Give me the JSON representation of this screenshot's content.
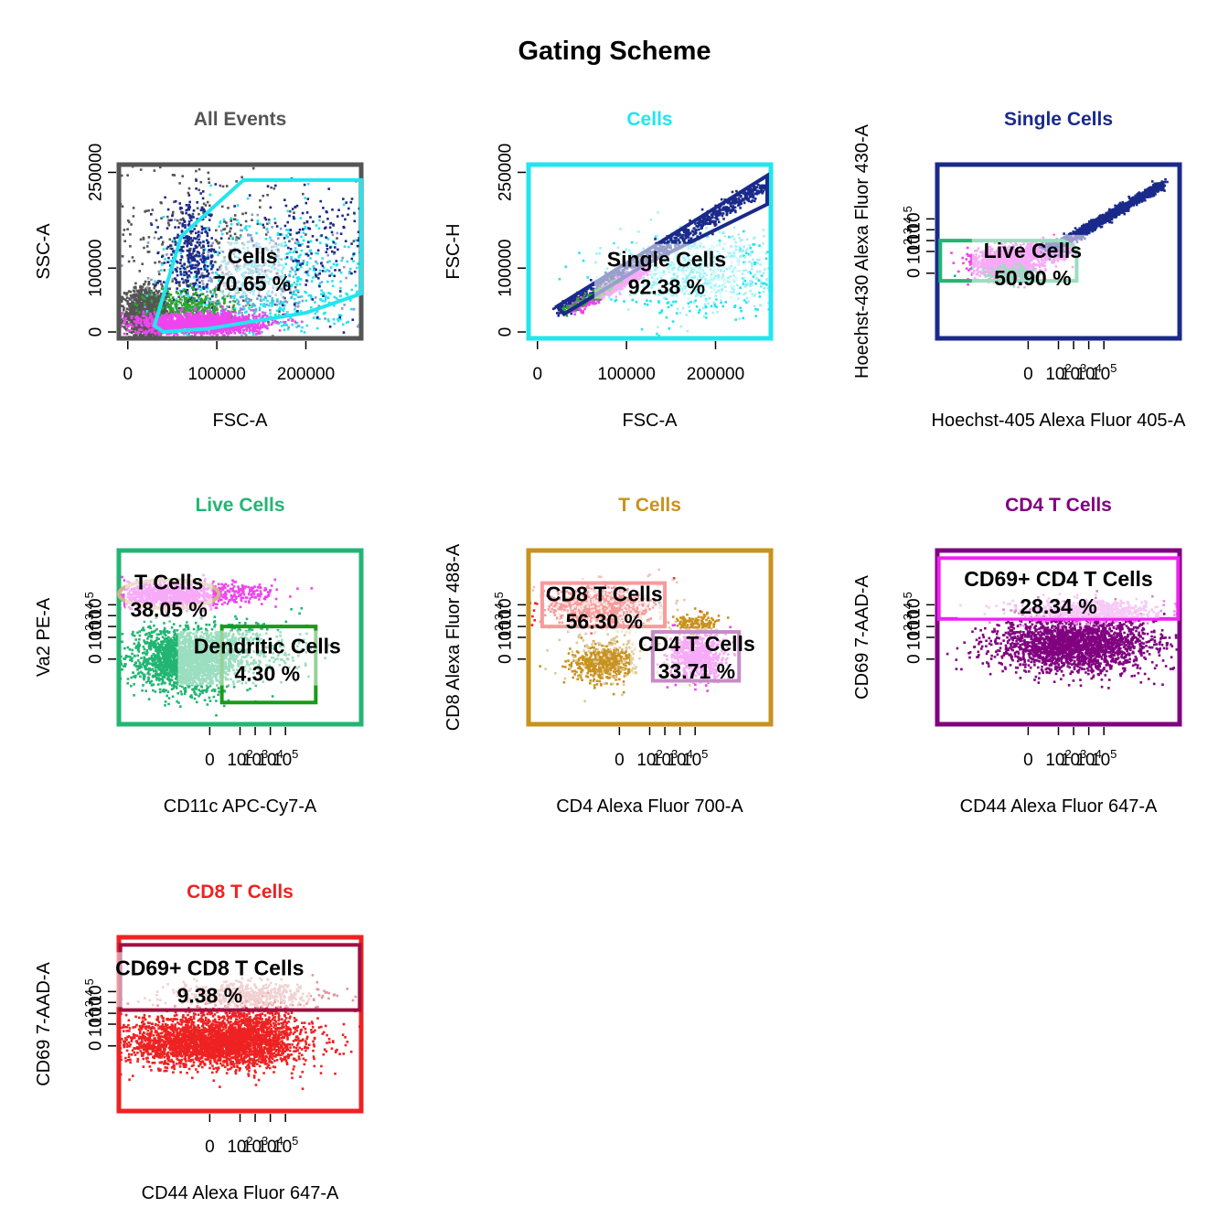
{
  "title": "Gating Scheme",
  "chart_data": [
    {
      "type": "scatter",
      "title": "All Events",
      "title_color": "#555555",
      "frame_color": "#555555",
      "xlabel": "FSC-A",
      "ylabel": "SSC-A",
      "scale": "linear",
      "xlim": [
        -10000,
        262144
      ],
      "ylim": [
        -10000,
        262144
      ],
      "xticks": [
        {
          "v": 0,
          "t": "0"
        },
        {
          "v": 100000,
          "t": "100000"
        },
        {
          "v": 200000,
          "t": "200000"
        }
      ],
      "yticks": [
        {
          "v": 0,
          "t": "0"
        },
        {
          "v": 100000,
          "t": "100000"
        },
        {
          "v": 250000,
          "t": "250000"
        }
      ],
      "gates": [
        {
          "name": "Cells",
          "percent": "70.65 %",
          "color": "#22e5ee",
          "shape": "polygon",
          "points": [
            [
              40000,
              0
            ],
            [
              90000,
              5000
            ],
            [
              200000,
              30000
            ],
            [
              262144,
              60000
            ],
            [
              262144,
              238000
            ],
            [
              130000,
              238000
            ],
            [
              60000,
              150000
            ],
            [
              30000,
              10000
            ]
          ],
          "label_at": [
            140000,
            100000
          ]
        }
      ],
      "clusters": [
        {
          "color": "#555555",
          "n": 1400,
          "cx": 20000,
          "cy": 30000,
          "sx": 12000,
          "sy": 20000
        },
        {
          "color": "#555555",
          "n": 300,
          "cx": 80000,
          "cy": 150000,
          "sx": 60000,
          "sy": 70000
        },
        {
          "color": "#22e5ee",
          "n": 700,
          "cx": 160000,
          "cy": 80000,
          "sx": 60000,
          "sy": 55000
        },
        {
          "color": "#8899cc",
          "n": 400,
          "cx": 130000,
          "cy": 70000,
          "sx": 50000,
          "sy": 45000
        },
        {
          "color": "#1a2a8a",
          "n": 350,
          "cx": 70000,
          "cy": 120000,
          "sx": 15000,
          "sy": 40000
        },
        {
          "color": "#1a2a8a",
          "n": 200,
          "cx": 210000,
          "cy": 140000,
          "sx": 40000,
          "sy": 50000
        },
        {
          "color": "#2ea32e",
          "n": 300,
          "cx": 70000,
          "cy": 40000,
          "sx": 25000,
          "sy": 15000
        },
        {
          "color": "#ee44ee",
          "n": 1600,
          "cx": 80000,
          "cy": 15000,
          "sx": 35000,
          "sy": 8000
        }
      ]
    },
    {
      "type": "scatter",
      "title": "Cells",
      "title_color": "#22e5ee",
      "frame_color": "#22e5ee",
      "xlabel": "FSC-A",
      "ylabel": "FSC-H",
      "scale": "linear",
      "xlim": [
        -10000,
        262144
      ],
      "ylim": [
        -10000,
        262144
      ],
      "xticks": [
        {
          "v": 0,
          "t": "0"
        },
        {
          "v": 100000,
          "t": "100000"
        },
        {
          "v": 200000,
          "t": "200000"
        }
      ],
      "yticks": [
        {
          "v": 0,
          "t": "0"
        },
        {
          "v": 100000,
          "t": "100000"
        },
        {
          "v": 250000,
          "t": "250000"
        }
      ],
      "gates": [
        {
          "name": "Single Cells",
          "percent": "92.38 %",
          "color": "#1a2a8a",
          "shape": "polygon",
          "points": [
            [
              22000,
              40000
            ],
            [
              258000,
              245000
            ],
            [
              258000,
              200000
            ],
            [
              120000,
              105000
            ],
            [
              30000,
              28000
            ]
          ],
          "label_at": [
            145000,
            95000
          ]
        }
      ],
      "clusters": [
        {
          "color": "#22e5ee",
          "n": 500,
          "cx": 170000,
          "cy": 90000,
          "sx": 50000,
          "sy": 30000
        },
        {
          "color": "#a8f0f5",
          "n": 400,
          "cx": 200000,
          "cy": 100000,
          "sx": 45000,
          "sy": 35000
        },
        {
          "color": "#1a2a8a",
          "line": [
            [
              25000,
              35000
            ],
            [
              255000,
              232000
            ]
          ],
          "n": 900,
          "spread": 5000
        },
        {
          "color": "#ee44ee",
          "line": [
            [
              40000,
              38000
            ],
            [
              120000,
              100000
            ]
          ],
          "n": 600,
          "spread": 4000
        },
        {
          "color": "#2ea32e",
          "line": [
            [
              30000,
              35000
            ],
            [
              90000,
              80000
            ]
          ],
          "n": 120,
          "spread": 3000
        }
      ]
    },
    {
      "type": "scatter",
      "title": "Single Cells",
      "title_color": "#1a2a8a",
      "frame_color": "#1a2a8a",
      "xlabel": "Hoechst-405 Alexa Fluor 405-A",
      "ylabel": "Hoechst-430 Alexa Fluor 430-A",
      "scale": "biex",
      "xlim": [
        -6,
        10
      ],
      "ylim": [
        -6,
        10
      ],
      "xticks": [
        {
          "v": 0,
          "t": "0"
        },
        {
          "v": 2,
          "t": "10^2"
        },
        {
          "v": 3,
          "t": "10^3"
        },
        {
          "v": 4,
          "t": "10^4"
        },
        {
          "v": 5,
          "t": "10^5"
        }
      ],
      "yticks": [
        {
          "v": 0,
          "t": "0"
        },
        {
          "v": 2,
          "t": "10^2"
        },
        {
          "v": 3,
          "t": "10^3"
        },
        {
          "v": 4,
          "t": "10^4"
        },
        {
          "v": 5,
          "t": "10^5"
        }
      ],
      "gates": [
        {
          "name": "Live Cells",
          "percent": "50.90 %",
          "color": "#22b573",
          "shape": "polygon",
          "points": [
            [
              -5.8,
              3.0
            ],
            [
              2.3,
              3.0
            ],
            [
              3.2,
              2.3
            ],
            [
              3.2,
              -0.7
            ],
            [
              -5.8,
              -0.7
            ]
          ],
          "label_at": [
            0.3,
            1.0
          ]
        }
      ],
      "clusters": [
        {
          "color": "#1a2a8a",
          "line": [
            [
              1.5,
              2.3
            ],
            [
              8.8,
              8.3
            ]
          ],
          "n": 1800,
          "spread": 0.18
        },
        {
          "color": "#ee44ee",
          "n": 1500,
          "cx": -1.5,
          "cy": 1.0,
          "sx": 1.0,
          "sy": 0.7
        },
        {
          "color": "#ee44ee",
          "n": 300,
          "cx": 1.0,
          "cy": 2.0,
          "sx": 0.9,
          "sy": 0.5
        },
        {
          "color": "#22b573",
          "n": 150,
          "cx": -1.2,
          "cy": 0.0,
          "sx": 1.0,
          "sy": 0.4
        },
        {
          "color": "#1a2a8a",
          "n": 80,
          "cx": 1.5,
          "cy": 2.4,
          "sx": 0.4,
          "sy": 0.3
        }
      ]
    },
    {
      "type": "scatter",
      "title": "Live Cells",
      "title_color": "#22b573",
      "frame_color": "#22b573",
      "xlabel": "CD11c APC-Cy7-A",
      "ylabel": "Va2 PE-A",
      "scale": "biex",
      "xlim": [
        -6,
        10
      ],
      "ylim": [
        -6,
        10
      ],
      "xticks": [
        {
          "v": 0,
          "t": "0"
        },
        {
          "v": 2,
          "t": "10^2"
        },
        {
          "v": 3,
          "t": "10^3"
        },
        {
          "v": 4,
          "t": "10^4"
        },
        {
          "v": 5,
          "t": "10^5"
        }
      ],
      "yticks": [
        {
          "v": 0,
          "t": "0"
        },
        {
          "v": 2,
          "t": "10^2"
        },
        {
          "v": 3,
          "t": "10^3"
        },
        {
          "v": 4,
          "t": "10^4"
        },
        {
          "v": 5,
          "t": "10^5"
        }
      ],
      "gates": [
        {
          "name": "T Cells",
          "percent": "38.05 %",
          "color": "#d2b48c",
          "shape": "ellipse",
          "cx": -2.7,
          "cy": 6.0,
          "rx": 3.3,
          "ry": 1.3,
          "label_at": [
            -2.7,
            6.0
          ]
        },
        {
          "name": "Dendritic Cells",
          "percent": "4.30 %",
          "color": "#1a9a1a",
          "shape": "rect",
          "x0": 0.8,
          "x1": 7.0,
          "y0": -4.0,
          "y1": 3.0,
          "label_at": [
            3.8,
            0.1
          ]
        }
      ],
      "clusters": [
        {
          "color": "#22b573",
          "n": 2200,
          "cx": -1.5,
          "cy": 0.0,
          "sx": 1.8,
          "sy": 1.4
        },
        {
          "color": "#22b573",
          "n": 200,
          "cx": 1.5,
          "cy": 2.0,
          "sx": 1.2,
          "sy": 0.8
        },
        {
          "color": "#ee44ee",
          "n": 900,
          "cx": -2.5,
          "cy": 6.0,
          "sx": 2.0,
          "sy": 0.6
        },
        {
          "color": "#ee44ee",
          "n": 150,
          "cx": 1.5,
          "cy": 6.2,
          "sx": 1.5,
          "sy": 0.5
        },
        {
          "color": "#22b573",
          "n": 120,
          "cx": 4.0,
          "cy": 1.0,
          "sx": 1.5,
          "sy": 1.5
        }
      ]
    },
    {
      "type": "scatter",
      "title": "T Cells",
      "title_color": "#c8921e",
      "frame_color": "#c8921e",
      "xlabel": "CD4 Alexa Fluor 700-A",
      "ylabel": "CD8 Alexa Fluor 488-A",
      "scale": "biex",
      "xlim": [
        -6,
        10
      ],
      "ylim": [
        -6,
        10
      ],
      "xticks": [
        {
          "v": 0,
          "t": "0"
        },
        {
          "v": 2,
          "t": "10^2"
        },
        {
          "v": 3,
          "t": "10^3"
        },
        {
          "v": 4,
          "t": "10^4"
        },
        {
          "v": 5,
          "t": "10^5"
        }
      ],
      "yticks": [
        {
          "v": 0,
          "t": "0"
        },
        {
          "v": 2,
          "t": "10^2"
        },
        {
          "v": 3,
          "t": "10^3"
        },
        {
          "v": 4,
          "t": "10^4"
        },
        {
          "v": 5,
          "t": "10^5"
        }
      ],
      "gates": [
        {
          "name": "CD8 T Cells",
          "percent": "56.30 %",
          "color": "#ee2222",
          "shape": "rect",
          "x0": -5.1,
          "x1": 3.0,
          "y0": 3.0,
          "y1": 7.0,
          "label_at": [
            -1.0,
            4.9
          ]
        },
        {
          "name": "CD4 T Cells",
          "percent": "33.71 %",
          "color": "#800080",
          "shape": "rect",
          "x0": 2.2,
          "x1": 7.9,
          "y0": -2.0,
          "y1": 2.5,
          "label_at": [
            5.1,
            0.3
          ]
        }
      ],
      "clusters": [
        {
          "color": "#ee2222",
          "n": 900,
          "cx": -1.5,
          "cy": 5.0,
          "sx": 1.6,
          "sy": 0.8
        },
        {
          "color": "#f5c0c0",
          "n": 200,
          "cx": -1.0,
          "cy": 5.5,
          "sx": 2.0,
          "sy": 1.0
        },
        {
          "color": "#ee44ee",
          "n": 700,
          "cx": 5.0,
          "cy": 0.3,
          "sx": 0.9,
          "sy": 1.1
        },
        {
          "color": "#c8921e",
          "n": 500,
          "cx": -1.2,
          "cy": -0.3,
          "sx": 1.0,
          "sy": 0.8
        },
        {
          "color": "#c8921e",
          "n": 150,
          "cx": 5.0,
          "cy": 3.2,
          "sx": 0.7,
          "sy": 0.5
        },
        {
          "color": "#ddc89a",
          "n": 200,
          "cx": -0.5,
          "cy": 1.5,
          "sx": 2.0,
          "sy": 2.0
        }
      ]
    },
    {
      "type": "scatter",
      "title": "CD4 T Cells",
      "title_color": "#800080",
      "frame_color": "#800080",
      "xlabel": "CD44 Alexa Fluor 647-A",
      "ylabel": "CD69 7-AAD-A",
      "scale": "biex",
      "xlim": [
        -6,
        10
      ],
      "ylim": [
        -6,
        10
      ],
      "xticks": [
        {
          "v": 0,
          "t": "0"
        },
        {
          "v": 2,
          "t": "10^2"
        },
        {
          "v": 3,
          "t": "10^3"
        },
        {
          "v": 4,
          "t": "10^4"
        },
        {
          "v": 5,
          "t": "10^5"
        }
      ],
      "yticks": [
        {
          "v": 0,
          "t": "0"
        },
        {
          "v": 2,
          "t": "10^2"
        },
        {
          "v": 3,
          "t": "10^3"
        },
        {
          "v": 4,
          "t": "10^4"
        },
        {
          "v": 5,
          "t": "10^5"
        }
      ],
      "gates": [
        {
          "name": "CD69+ CD4 T Cells",
          "percent": "28.34 %",
          "color": "#ee22ee",
          "shape": "rect",
          "x0": -5.9,
          "x1": 9.9,
          "y0": 3.7,
          "y1": 9.3,
          "label_at": [
            2.0,
            6.3
          ]
        }
      ],
      "clusters": [
        {
          "color": "#800080",
          "n": 2300,
          "cx": 3.0,
          "cy": 1.5,
          "sx": 2.6,
          "sy": 1.3
        },
        {
          "color": "#ee88ee",
          "n": 700,
          "cx": 4.0,
          "cy": 4.5,
          "sx": 2.2,
          "sy": 0.5
        }
      ]
    },
    {
      "type": "scatter",
      "title": "CD8 T Cells",
      "title_color": "#ee2222",
      "frame_color": "#ee2222",
      "xlabel": "CD44 Alexa Fluor 647-A",
      "ylabel": "CD69 7-AAD-A",
      "scale": "biex",
      "xlim": [
        -6,
        10
      ],
      "ylim": [
        -6,
        10
      ],
      "xticks": [
        {
          "v": 0,
          "t": "0"
        },
        {
          "v": 2,
          "t": "10^2"
        },
        {
          "v": 3,
          "t": "10^3"
        },
        {
          "v": 4,
          "t": "10^4"
        },
        {
          "v": 5,
          "t": "10^5"
        }
      ],
      "yticks": [
        {
          "v": 0,
          "t": "0"
        },
        {
          "v": 2,
          "t": "10^2"
        },
        {
          "v": 3,
          "t": "10^3"
        },
        {
          "v": 4,
          "t": "10^4"
        },
        {
          "v": 5,
          "t": "10^5"
        }
      ],
      "gates": [
        {
          "name": "CD69+ CD8 T Cells",
          "percent": "9.38 %",
          "color": "#a01040",
          "shape": "rect",
          "x0": -5.9,
          "x1": 9.9,
          "y0": 3.3,
          "y1": 9.3,
          "label_at": [
            0.0,
            6.1
          ]
        }
      ],
      "clusters": [
        {
          "color": "#ee2222",
          "n": 2800,
          "cx": 0.0,
          "cy": 0.5,
          "sx": 3.0,
          "sy": 1.2
        },
        {
          "color": "#ee2222",
          "n": 500,
          "cx": 3.0,
          "cy": 1.0,
          "sx": 1.5,
          "sy": 1.5
        },
        {
          "color": "#dd9999",
          "n": 500,
          "cx": 2.5,
          "cy": 4.8,
          "sx": 2.5,
          "sy": 0.6
        }
      ]
    }
  ]
}
